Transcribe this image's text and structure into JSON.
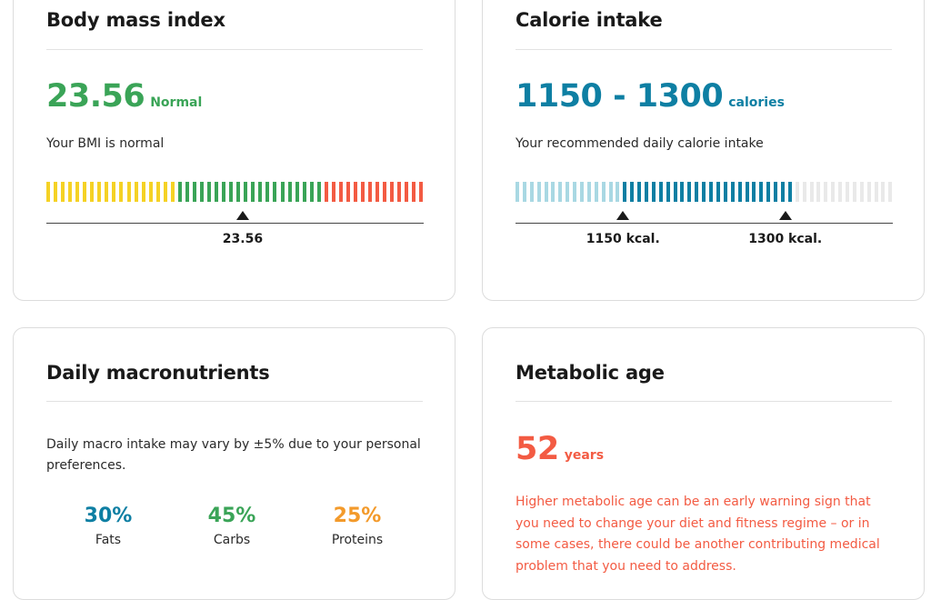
{
  "bmi": {
    "title": "Body mass index",
    "value": "23.56",
    "category": "Normal",
    "description": "Your BMI is normal",
    "marker_label": "23.56",
    "scale": {
      "yellow_bars": 18,
      "green_bars": 20,
      "red_bars": 14,
      "marker_position": 0.52
    },
    "colors": {
      "yellow": "#f5d225",
      "green": "#3aa457",
      "red": "#f35b43"
    }
  },
  "calories": {
    "title": "Calorie intake",
    "range": "1150 - 1300",
    "unit": "calories",
    "description": "Your recommended daily calorie intake",
    "low_label": "1150 kcal.",
    "high_label": "1300 kcal.",
    "scale": {
      "light_bars": 15,
      "dark_bars": 24,
      "gray_bars": 14,
      "low_position": 0.285,
      "high_position": 0.715
    },
    "colors": {
      "light": "#a9d8e3",
      "dark": "#0e7fa3",
      "gray": "#e9e9e9"
    }
  },
  "macros": {
    "title": "Daily macronutrients",
    "description": "Daily macro intake may vary by ±5% due to your personal preferences.",
    "items": [
      {
        "percent": "30%",
        "name": "Fats",
        "color": "#0e7fa3"
      },
      {
        "percent": "45%",
        "name": "Carbs",
        "color": "#3aa457"
      },
      {
        "percent": "25%",
        "name": "Proteins",
        "color": "#f39a2b"
      }
    ]
  },
  "metabolic": {
    "title": "Metabolic age",
    "value": "52",
    "unit": "years",
    "warning": "Higher metabolic age can be an early warning sign that you need to change your diet and fitness regime – or in some cases, there could be another contributing medical problem that you need to address."
  }
}
